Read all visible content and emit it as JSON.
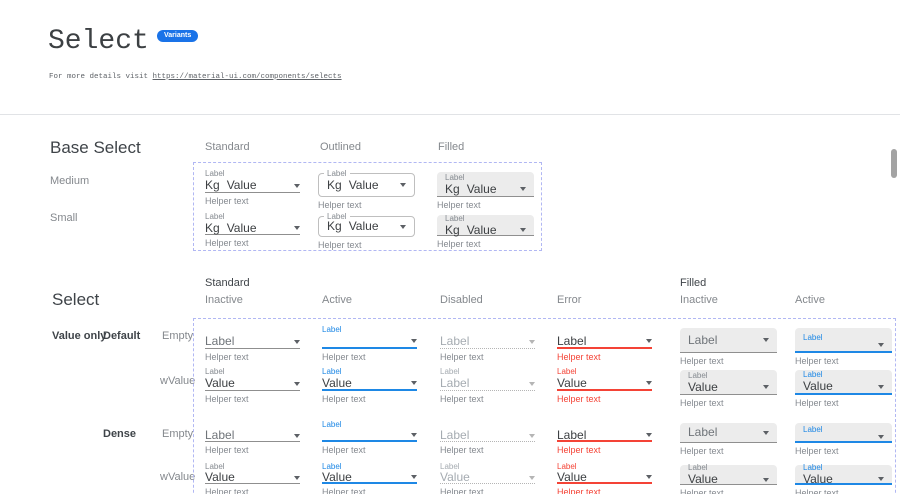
{
  "header": {
    "title": "Select",
    "badge": "Variants",
    "subtitle_prefix": "For more details visit ",
    "subtitle_link": "https://material-ui.com/components/selects"
  },
  "colors": {
    "accent_blue": "#1a73e8",
    "active_blue": "#1e88e5",
    "error_red": "#f44336",
    "filled_bg": "#ececec",
    "frame_dash": "#b1b7f3",
    "underline_gray": "#8f8f8f"
  },
  "base_select": {
    "heading": "Base Select",
    "column_headers": [
      "Standard",
      "Outlined",
      "Filled"
    ],
    "row_headers": [
      "Medium",
      "Small"
    ],
    "cells": [
      {
        "variant": "standard",
        "state": "inactive",
        "label": "Label",
        "prefix": "Kg",
        "value": "Value",
        "placeholder": "Label",
        "helper": "Helper text"
      },
      {
        "variant": "outlined",
        "state": "inactive",
        "label": "Label",
        "prefix": "Kg",
        "value": "Value",
        "placeholder": "Label",
        "helper": "Helper text"
      },
      {
        "variant": "filled",
        "state": "inactive",
        "label": "Label",
        "prefix": "Kg",
        "value": "Value",
        "placeholder": "Label",
        "helper": "Helper text"
      },
      {
        "variant": "standard",
        "state": "inactive",
        "label": "Label",
        "prefix": "Kg",
        "value": "Value",
        "placeholder": "Label",
        "helper": "Helper text"
      },
      {
        "variant": "outlined",
        "state": "inactive",
        "label": "Label",
        "prefix": "Kg",
        "value": "Value",
        "placeholder": "Label",
        "helper": "Helper text"
      },
      {
        "variant": "filled",
        "state": "inactive",
        "label": "Label",
        "prefix": "Kg",
        "value": "Value",
        "placeholder": "Label",
        "helper": "Helper text"
      }
    ]
  },
  "select_matrix": {
    "heading": "Select",
    "group_headers": [
      {
        "label": "Standard",
        "subcolumns": [
          "Inactive",
          "Active",
          "Disabled",
          "Error"
        ]
      },
      {
        "label": "Filled",
        "subcolumns": [
          "Inactive",
          "Active"
        ]
      }
    ],
    "row_axis": {
      "group": "Value only",
      "sections": [
        {
          "label": "Default",
          "rows": [
            "Empty",
            "wValue"
          ]
        },
        {
          "label": "Dense",
          "rows": [
            "Empty",
            "wValue"
          ]
        }
      ]
    },
    "cells": [
      {
        "variant": "standard",
        "state": "inactive",
        "label": "Label",
        "value": "",
        "placeholder": "Label",
        "helper": "Helper text"
      },
      {
        "variant": "standard",
        "state": "active",
        "label": "Label",
        "value": "",
        "placeholder": "Label",
        "helper": "Helper text"
      },
      {
        "variant": "standard",
        "state": "disabled",
        "label": "Label",
        "value": "",
        "placeholder": "Label",
        "helper": "Helper text"
      },
      {
        "variant": "standard",
        "state": "error",
        "label": "Label",
        "value": "",
        "placeholder": "Label",
        "helper": "Helper text"
      },
      {
        "variant": "filled",
        "state": "inactive",
        "label": "Label",
        "value": "",
        "placeholder": "Label",
        "helper": "Helper text"
      },
      {
        "variant": "filled",
        "state": "active",
        "label": "Label",
        "value": "",
        "placeholder": "Label",
        "helper": "Helper text"
      },
      {
        "variant": "standard",
        "state": "inactive",
        "label": "Label",
        "value": "Value",
        "placeholder": "Label",
        "helper": "Helper text"
      },
      {
        "variant": "standard",
        "state": "active",
        "label": "Label",
        "value": "Value",
        "placeholder": "Label",
        "helper": "Helper text"
      },
      {
        "variant": "standard",
        "state": "disabled",
        "label": "Label",
        "value": "Label",
        "placeholder": "Label",
        "helper": "Helper text"
      },
      {
        "variant": "standard",
        "state": "error",
        "label": "Label",
        "value": "Value",
        "placeholder": "Label",
        "helper": "Helper text"
      },
      {
        "variant": "filled",
        "state": "inactive",
        "label": "Label",
        "value": "Value",
        "placeholder": "Label",
        "helper": "Helper text"
      },
      {
        "variant": "filled",
        "state": "active",
        "label": "Label",
        "value": "Value",
        "placeholder": "Label",
        "helper": "Helper text"
      },
      {
        "variant": "standard",
        "state": "inactive",
        "label": "Label",
        "value": "",
        "placeholder": "Label",
        "helper": "Helper text"
      },
      {
        "variant": "standard",
        "state": "active",
        "label": "Label",
        "value": "",
        "placeholder": "Label",
        "helper": "Helper text"
      },
      {
        "variant": "standard",
        "state": "disabled",
        "label": "Label",
        "value": "",
        "placeholder": "Label",
        "helper": "Helper text"
      },
      {
        "variant": "standard",
        "state": "error",
        "label": "Label",
        "value": "",
        "placeholder": "Label",
        "helper": "Helper text"
      },
      {
        "variant": "filled",
        "state": "inactive",
        "label": "Label",
        "value": "",
        "placeholder": "Label",
        "helper": "Helper text"
      },
      {
        "variant": "filled",
        "state": "active",
        "label": "Label",
        "value": "",
        "placeholder": "Label",
        "helper": "Helper text"
      },
      {
        "variant": "standard",
        "state": "inactive",
        "label": "Label",
        "value": "Value",
        "placeholder": "Label",
        "helper": "Helper text"
      },
      {
        "variant": "standard",
        "state": "active",
        "label": "Label",
        "value": "Value",
        "placeholder": "Label",
        "helper": "Helper text"
      },
      {
        "variant": "standard",
        "state": "disabled",
        "label": "Label",
        "value": "Value",
        "placeholder": "Label",
        "helper": "Helper text"
      },
      {
        "variant": "standard",
        "state": "error",
        "label": "Label",
        "value": "Value",
        "placeholder": "Label",
        "helper": "Helper text"
      },
      {
        "variant": "filled",
        "state": "inactive",
        "label": "Label",
        "value": "Value",
        "placeholder": "Label",
        "helper": "Helper text"
      },
      {
        "variant": "filled",
        "state": "active",
        "label": "Label",
        "value": "Value",
        "placeholder": "Label",
        "helper": "Helper text"
      }
    ]
  }
}
